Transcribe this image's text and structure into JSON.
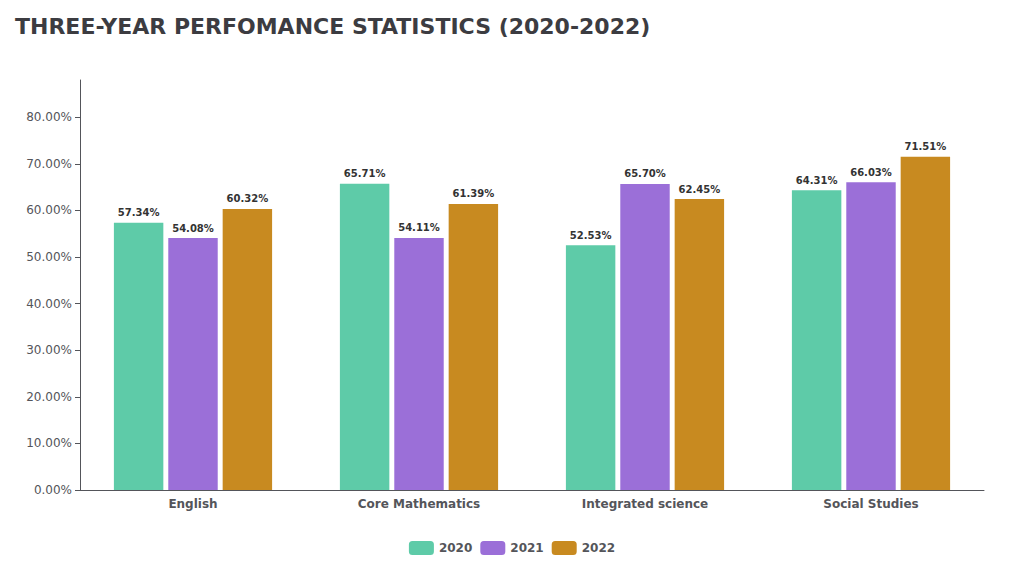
{
  "chart_data": {
    "type": "bar",
    "title": "THREE-YEAR PERFOMANCE STATISTICS (2020-2022)",
    "categories": [
      "English",
      "Core Mathematics",
      "Integrated science",
      "Social Studies"
    ],
    "series": [
      {
        "name": "2020",
        "color": "#5ecba8",
        "values": [
          57.34,
          65.71,
          52.53,
          64.31
        ],
        "value_labels": [
          "57.34%",
          "65.71%",
          "52.53%",
          "64.31%"
        ]
      },
      {
        "name": "2021",
        "color": "#9b6fd8",
        "values": [
          54.08,
          54.11,
          65.7,
          66.03
        ],
        "value_labels": [
          "54.08%",
          "54.11%",
          "65.70%",
          "66.03%"
        ]
      },
      {
        "name": "2022",
        "color": "#c88a20",
        "values": [
          60.32,
          61.39,
          62.45,
          71.51
        ],
        "value_labels": [
          "60.32%",
          "61.39%",
          "62.45%",
          "71.51%"
        ]
      }
    ],
    "ylim": [
      0,
      88
    ],
    "yticks": [
      {
        "value": 0,
        "label": "0.00%"
      },
      {
        "value": 10,
        "label": "10.00%"
      },
      {
        "value": 20,
        "label": "20.00%"
      },
      {
        "value": 30,
        "label": "30.00%"
      },
      {
        "value": 40,
        "label": "40.00%"
      },
      {
        "value": 50,
        "label": "50.00%"
      },
      {
        "value": 60,
        "label": "60.00%"
      },
      {
        "value": 70,
        "label": "70.00%"
      },
      {
        "value": 80,
        "label": "80.00%"
      }
    ],
    "grid": false,
    "legend": "bottom",
    "data_labels": true
  }
}
